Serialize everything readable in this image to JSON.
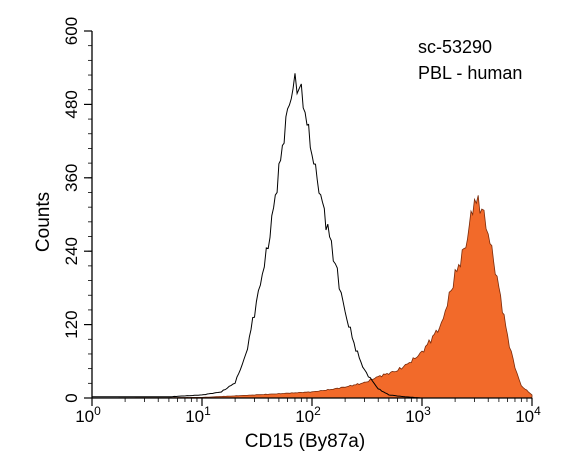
{
  "chart_data": {
    "type": "area",
    "xlabel": "CD15 (By87a)",
    "ylabel": "Counts",
    "x_scale": "log",
    "xlim": [
      1,
      10000
    ],
    "ylim": [
      0,
      600
    ],
    "x_ticks": [
      {
        "value": 1,
        "base": "10",
        "exp": "0"
      },
      {
        "value": 10,
        "base": "10",
        "exp": "1"
      },
      {
        "value": 100,
        "base": "10",
        "exp": "2"
      },
      {
        "value": 1000,
        "base": "10",
        "exp": "3"
      },
      {
        "value": 10000,
        "base": "10",
        "exp": "4"
      }
    ],
    "y_ticks": [
      "0",
      "120",
      "240",
      "360",
      "480",
      "600"
    ],
    "annotations": [
      "sc-53290",
      "PBL - human"
    ],
    "grid": false,
    "series": [
      {
        "style": "outline",
        "color": "#000000",
        "x": [
          1,
          5,
          10,
          15,
          20,
          25,
          30,
          40,
          50,
          60,
          70,
          80,
          90,
          100,
          120,
          150,
          200,
          250,
          300,
          400,
          500,
          700,
          1000
        ],
        "y": [
          2,
          2,
          5,
          10,
          25,
          70,
          140,
          250,
          370,
          470,
          518,
          500,
          450,
          400,
          330,
          250,
          140,
          80,
          45,
          15,
          5,
          2,
          0
        ]
      },
      {
        "style": "filled",
        "color": "#f26a2a",
        "x": [
          1,
          10,
          30,
          50,
          100,
          150,
          200,
          300,
          400,
          600,
          800,
          1000,
          1500,
          2000,
          2500,
          3000,
          3500,
          4000,
          5000,
          6000,
          7000,
          8000,
          10000
        ],
        "y": [
          0,
          1,
          5,
          7,
          10,
          14,
          18,
          25,
          35,
          45,
          60,
          75,
          120,
          200,
          250,
          325,
          310,
          270,
          180,
          100,
          50,
          20,
          5
        ]
      }
    ]
  }
}
